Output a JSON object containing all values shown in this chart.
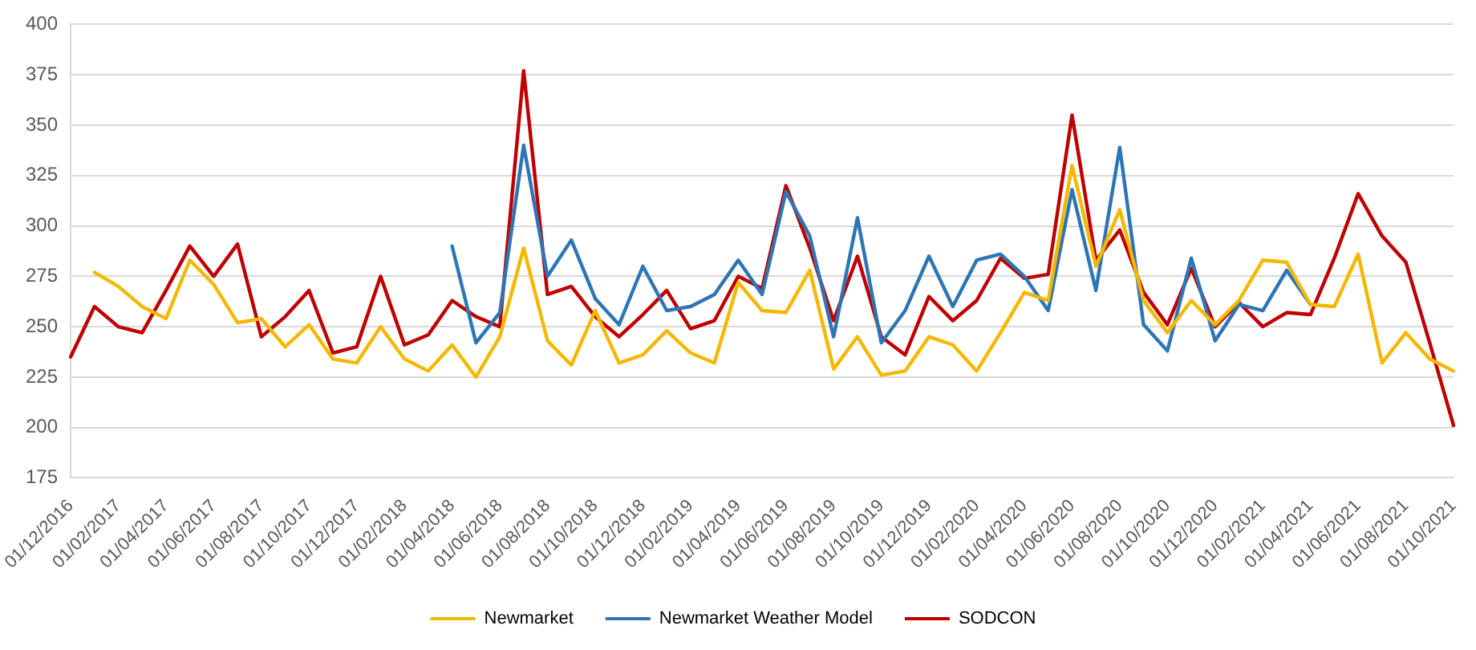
{
  "chart_data": {
    "type": "line",
    "categories": [
      "01/12/2016",
      null,
      "01/02/2017",
      null,
      "01/04/2017",
      null,
      "01/06/2017",
      null,
      "01/08/2017",
      null,
      "01/10/2017",
      null,
      "01/12/2017",
      null,
      "01/02/2018",
      null,
      "01/04/2018",
      null,
      "01/06/2018",
      null,
      "01/08/2018",
      null,
      "01/10/2018",
      null,
      "01/12/2018",
      null,
      "01/02/2019",
      null,
      "01/04/2019",
      null,
      "01/06/2019",
      null,
      "01/08/2019",
      null,
      "01/10/2019",
      null,
      "01/12/2019",
      null,
      "01/02/2020",
      null,
      "01/04/2020",
      null,
      "01/06/2020",
      null,
      "01/08/2020",
      null,
      "01/10/2020",
      null,
      "01/12/2020",
      null,
      "01/02/2021",
      null,
      "01/04/2021",
      null,
      "01/06/2021",
      null,
      "01/08/2021",
      null,
      "01/10/2021"
    ],
    "series": [
      {
        "name": "Newmarket",
        "color": "#f5b800",
        "values": [
          null,
          277,
          270,
          260,
          254,
          283,
          271,
          252,
          254,
          240,
          251,
          234,
          232,
          250,
          234,
          228,
          241,
          225,
          245,
          289,
          243,
          231,
          258,
          232,
          236,
          248,
          237,
          232,
          272,
          258,
          257,
          278,
          229,
          245,
          226,
          228,
          245,
          241,
          228,
          247,
          267,
          263,
          330,
          280,
          308,
          263,
          247,
          263,
          251,
          263,
          283,
          282,
          261,
          260,
          286,
          232,
          247,
          234,
          228
        ]
      },
      {
        "name": "Newmarket Weather Model",
        "color": "#2e75b6",
        "values": [
          null,
          null,
          null,
          null,
          null,
          null,
          null,
          null,
          null,
          null,
          null,
          null,
          null,
          null,
          null,
          null,
          290,
          242,
          257,
          340,
          275,
          293,
          264,
          251,
          280,
          258,
          260,
          266,
          283,
          266,
          317,
          295,
          245,
          304,
          242,
          258,
          285,
          260,
          283,
          286,
          275,
          258,
          318,
          268,
          339,
          251,
          238,
          284,
          243,
          261,
          258,
          278,
          261,
          null,
          null,
          null,
          null,
          null,
          null
        ]
      },
      {
        "name": "SODCON",
        "color": "#c00000",
        "values": [
          235,
          260,
          250,
          247,
          268,
          290,
          275,
          291,
          245,
          255,
          268,
          237,
          240,
          275,
          241,
          246,
          263,
          255,
          250,
          377,
          266,
          270,
          255,
          245,
          256,
          268,
          249,
          253,
          275,
          269,
          320,
          289,
          253,
          285,
          245,
          236,
          265,
          253,
          263,
          284,
          274,
          276,
          355,
          283,
          298,
          267,
          251,
          279,
          250,
          262,
          250,
          257,
          256,
          284,
          316,
          295,
          282,
          242,
          201
        ]
      }
    ],
    "ylim": [
      175,
      400
    ],
    "yticks": [
      175,
      200,
      225,
      250,
      275,
      300,
      325,
      350,
      375,
      400
    ],
    "grid": "y",
    "legend": "bottom",
    "marker": "none",
    "line_style": "solid"
  }
}
